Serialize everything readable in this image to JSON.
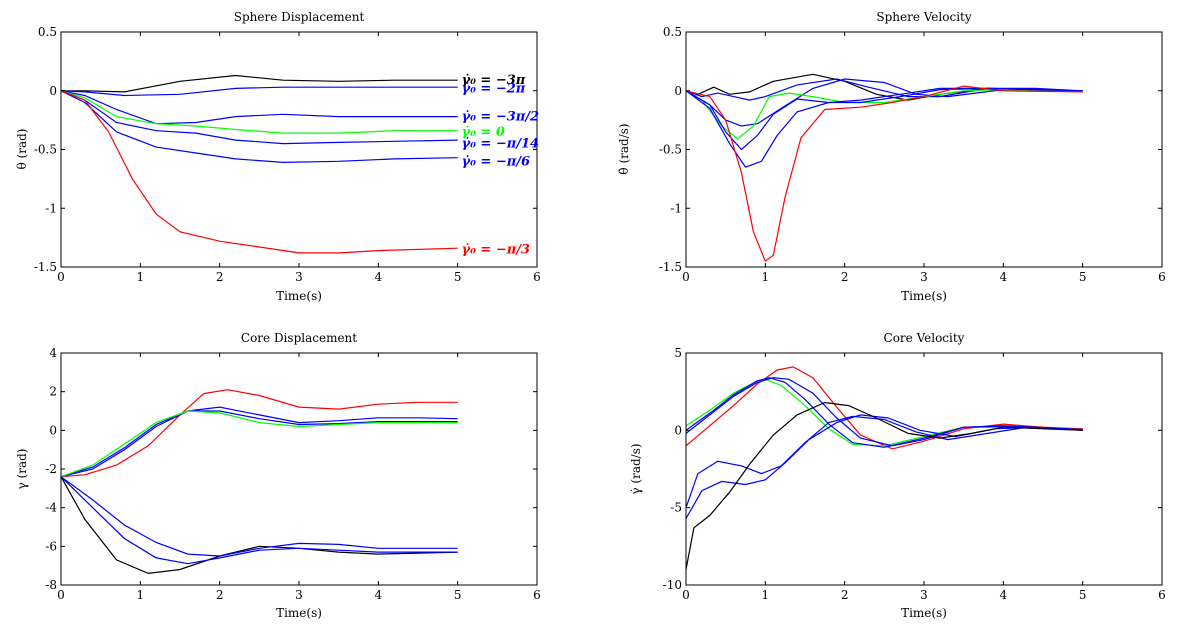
{
  "colors": {
    "black": "#000000",
    "blue": "#0000ff",
    "green": "#00ff00",
    "red": "#ff0000"
  },
  "chart_data": [
    {
      "type": "line",
      "title": "Sphere Displacement",
      "xlabel": "Time(s)",
      "ylabel": "θ (rad)",
      "xlim": [
        0,
        6
      ],
      "ylim": [
        -1.5,
        0.5
      ],
      "xticks": [
        0,
        1,
        2,
        3,
        4,
        5,
        6
      ],
      "yticks": [
        0.5,
        0,
        -0.5,
        -1,
        -1.5
      ],
      "xtick_labels": [
        "0",
        "1",
        "2",
        "3",
        "4",
        "5",
        "6"
      ],
      "ytick_labels": [
        "0.5",
        "0",
        "-0.5",
        "-1",
        "-1.5"
      ],
      "annotations": [
        {
          "text": "γ̇₀ = −3π",
          "x": 5.05,
          "y": 0.09,
          "color": "black"
        },
        {
          "text": "γ̇₀ = −2π",
          "x": 5.05,
          "y": 0.02,
          "color": "blue"
        },
        {
          "text": "γ̇₀ = −3π/2",
          "x": 5.05,
          "y": -0.22,
          "color": "blue"
        },
        {
          "text": "γ̇₀ = 0",
          "x": 5.05,
          "y": -0.35,
          "color": "green"
        },
        {
          "text": "γ̇₀ = −π/14",
          "x": 5.05,
          "y": -0.45,
          "color": "blue"
        },
        {
          "text": "γ̇₀ = −π/6",
          "x": 5.05,
          "y": -0.6,
          "color": "blue"
        },
        {
          "text": "γ̇₀ = −π/3",
          "x": 5.05,
          "y": -1.35,
          "color": "red"
        }
      ],
      "series": [
        {
          "color": "black",
          "x": [
            0,
            0.3,
            0.8,
            1.5,
            2.2,
            2.8,
            3.5,
            4.2,
            5
          ],
          "y": [
            0,
            0,
            -0.01,
            0.08,
            0.13,
            0.09,
            0.08,
            0.09,
            0.09
          ]
        },
        {
          "color": "blue",
          "x": [
            0,
            0.3,
            0.8,
            1.5,
            2.2,
            2.8,
            3.5,
            4.2,
            5
          ],
          "y": [
            0,
            -0.01,
            -0.04,
            -0.03,
            0.02,
            0.03,
            0.03,
            0.03,
            0.03
          ]
        },
        {
          "color": "blue",
          "x": [
            0,
            0.3,
            0.7,
            1.2,
            1.7,
            2.2,
            2.8,
            3.5,
            4.2,
            5
          ],
          "y": [
            0,
            -0.04,
            -0.16,
            -0.28,
            -0.27,
            -0.22,
            -0.2,
            -0.22,
            -0.22,
            -0.22
          ]
        },
        {
          "color": "green",
          "x": [
            0,
            0.3,
            0.7,
            1.2,
            1.7,
            2.2,
            2.8,
            3.5,
            4.2,
            5
          ],
          "y": [
            0,
            -0.06,
            -0.22,
            -0.28,
            -0.3,
            -0.33,
            -0.36,
            -0.36,
            -0.34,
            -0.34
          ]
        },
        {
          "color": "blue",
          "x": [
            0,
            0.3,
            0.7,
            1.2,
            1.7,
            2.2,
            2.8,
            3.5,
            4.2,
            5
          ],
          "y": [
            0,
            -0.08,
            -0.27,
            -0.34,
            -0.36,
            -0.42,
            -0.45,
            -0.44,
            -0.43,
            -0.42
          ]
        },
        {
          "color": "blue",
          "x": [
            0,
            0.3,
            0.7,
            1.2,
            1.7,
            2.2,
            2.8,
            3.5,
            4.2,
            5
          ],
          "y": [
            0,
            -0.1,
            -0.35,
            -0.48,
            -0.53,
            -0.58,
            -0.61,
            -0.6,
            -0.58,
            -0.57
          ]
        },
        {
          "color": "red",
          "x": [
            0,
            0.3,
            0.6,
            0.9,
            1.2,
            1.5,
            2.0,
            2.5,
            3.0,
            3.5,
            4.0,
            5
          ],
          "y": [
            0,
            -0.08,
            -0.35,
            -0.75,
            -1.05,
            -1.2,
            -1.28,
            -1.33,
            -1.38,
            -1.38,
            -1.36,
            -1.34
          ]
        }
      ]
    },
    {
      "type": "line",
      "title": "Sphere Velocity",
      "xlabel": "Time(s)",
      "ylabel": "θ̇ (rad/s)",
      "xlim": [
        0,
        6
      ],
      "ylim": [
        -1.5,
        0.5
      ],
      "xticks": [
        0,
        1,
        2,
        3,
        4,
        5,
        6
      ],
      "yticks": [
        0.5,
        0,
        -0.5,
        -1,
        -1.5
      ],
      "xtick_labels": [
        "0",
        "1",
        "2",
        "3",
        "4",
        "5",
        "6"
      ],
      "ytick_labels": [
        "0.5",
        "0",
        "-0.5",
        "-1",
        "-1.5"
      ],
      "series": [
        {
          "color": "black",
          "x": [
            0,
            0.15,
            0.35,
            0.55,
            0.8,
            1.1,
            1.6,
            2.0,
            2.4,
            2.8,
            3.2,
            3.8,
            4.4,
            5
          ],
          "y": [
            0,
            -0.03,
            0.03,
            -0.03,
            -0.01,
            0.08,
            0.14,
            0.08,
            -0.03,
            -0.08,
            -0.03,
            0.02,
            0.01,
            0.0
          ]
        },
        {
          "color": "blue",
          "x": [
            0,
            0.2,
            0.4,
            0.6,
            0.8,
            1.0,
            1.4,
            1.9,
            2.3,
            2.8,
            3.2,
            3.8,
            4.4,
            5
          ],
          "y": [
            0,
            -0.05,
            -0.02,
            -0.05,
            -0.08,
            -0.05,
            0.05,
            0.1,
            0.03,
            -0.05,
            -0.05,
            0.02,
            0.02,
            0.0
          ]
        },
        {
          "color": "blue",
          "x": [
            0,
            0.3,
            0.5,
            0.7,
            0.9,
            1.2,
            1.6,
            2.0,
            2.5,
            2.9,
            3.3,
            4.0,
            5
          ],
          "y": [
            0,
            -0.12,
            -0.25,
            -0.3,
            -0.28,
            -0.15,
            0.02,
            0.1,
            0.07,
            -0.03,
            -0.05,
            0.01,
            0.0
          ]
        },
        {
          "color": "green",
          "x": [
            0,
            0.2,
            0.45,
            0.65,
            0.85,
            1.05,
            1.3,
            1.6,
            2.0,
            2.5,
            3.0,
            3.5,
            4.0,
            5
          ],
          "y": [
            0,
            -0.08,
            -0.3,
            -0.41,
            -0.3,
            -0.05,
            -0.02,
            -0.05,
            -0.1,
            -0.1,
            -0.05,
            0.0,
            0.01,
            0.0
          ]
        },
        {
          "color": "blue",
          "x": [
            0,
            0.3,
            0.5,
            0.7,
            0.9,
            1.1,
            1.4,
            1.8,
            2.2,
            2.7,
            3.2,
            3.8,
            4.4,
            5
          ],
          "y": [
            0,
            -0.12,
            -0.35,
            -0.5,
            -0.38,
            -0.2,
            -0.07,
            -0.1,
            -0.1,
            -0.05,
            0.01,
            0.02,
            0.01,
            0.0
          ]
        },
        {
          "color": "blue",
          "x": [
            0,
            0.3,
            0.55,
            0.75,
            0.95,
            1.15,
            1.4,
            1.8,
            2.2,
            2.7,
            3.2,
            3.8,
            4.4,
            5
          ],
          "y": [
            0,
            -0.15,
            -0.45,
            -0.65,
            -0.6,
            -0.38,
            -0.18,
            -0.1,
            -0.08,
            -0.03,
            0.02,
            0.02,
            0.01,
            0.0
          ]
        },
        {
          "color": "red",
          "x": [
            0,
            0.3,
            0.5,
            0.7,
            0.85,
            1.0,
            1.1,
            1.25,
            1.45,
            1.75,
            2.2,
            2.6,
            3.0,
            3.5,
            4.0,
            5
          ],
          "y": [
            0,
            -0.05,
            -0.25,
            -0.7,
            -1.2,
            -1.45,
            -1.4,
            -0.9,
            -0.4,
            -0.16,
            -0.14,
            -0.1,
            -0.05,
            0.04,
            0.0,
            -0.01
          ]
        }
      ]
    },
    {
      "type": "line",
      "title": "Core Displacement",
      "xlabel": "Time(s)",
      "ylabel": "γ (rad)",
      "xlim": [
        0,
        6
      ],
      "ylim": [
        -8,
        4
      ],
      "xticks": [
        0,
        1,
        2,
        3,
        4,
        5,
        6
      ],
      "yticks": [
        4,
        2,
        0,
        -2,
        -4,
        -6,
        -8
      ],
      "xtick_labels": [
        "0",
        "1",
        "2",
        "3",
        "4",
        "5",
        "6"
      ],
      "ytick_labels": [
        "4",
        "2",
        "0",
        "-2",
        "-4",
        "-6",
        "-8"
      ],
      "series": [
        {
          "color": "red",
          "x": [
            0,
            0.3,
            0.7,
            1.1,
            1.5,
            1.8,
            2.1,
            2.5,
            3.0,
            3.5,
            4.0,
            4.5,
            5
          ],
          "y": [
            -2.4,
            -2.3,
            -1.8,
            -0.8,
            0.8,
            1.9,
            2.1,
            1.8,
            1.2,
            1.1,
            1.35,
            1.45,
            1.45
          ]
        },
        {
          "color": "blue",
          "x": [
            0,
            0.4,
            0.8,
            1.2,
            1.6,
            2.0,
            2.5,
            3.0,
            3.5,
            4.0,
            4.5,
            5
          ],
          "y": [
            -2.4,
            -2.0,
            -1.0,
            0.2,
            1.0,
            1.2,
            0.8,
            0.4,
            0.5,
            0.65,
            0.65,
            0.6
          ]
        },
        {
          "color": "blue",
          "x": [
            0,
            0.4,
            0.8,
            1.2,
            1.6,
            2.0,
            2.5,
            3.0,
            3.5,
            4.0,
            4.5,
            5
          ],
          "y": [
            -2.4,
            -1.9,
            -0.9,
            0.3,
            1.0,
            1.0,
            0.6,
            0.3,
            0.35,
            0.45,
            0.45,
            0.45
          ]
        },
        {
          "color": "green",
          "x": [
            0,
            0.4,
            0.8,
            1.2,
            1.6,
            2.0,
            2.5,
            3.0,
            3.5,
            4.0,
            4.5,
            5
          ],
          "y": [
            -2.4,
            -1.8,
            -0.7,
            0.4,
            1.0,
            0.9,
            0.4,
            0.2,
            0.3,
            0.4,
            0.4,
            0.4
          ]
        },
        {
          "color": "black",
          "x": [
            0,
            0.3,
            0.7,
            1.1,
            1.5,
            2.0,
            2.5,
            3.0,
            3.5,
            4.0,
            4.5,
            5
          ],
          "y": [
            -2.4,
            -4.6,
            -6.7,
            -7.4,
            -7.2,
            -6.5,
            -6.0,
            -6.1,
            -6.3,
            -6.4,
            -6.35,
            -6.3
          ]
        },
        {
          "color": "blue",
          "x": [
            0,
            0.4,
            0.8,
            1.2,
            1.6,
            2.0,
            2.5,
            3.0,
            3.5,
            4.0,
            4.5,
            5
          ],
          "y": [
            -2.4,
            -4.0,
            -5.6,
            -6.6,
            -6.9,
            -6.6,
            -6.2,
            -6.1,
            -6.2,
            -6.3,
            -6.3,
            -6.3
          ]
        },
        {
          "color": "blue",
          "x": [
            0,
            0.4,
            0.8,
            1.2,
            1.6,
            2.0,
            2.5,
            3.0,
            3.5,
            4.0,
            4.5,
            5
          ],
          "y": [
            -2.4,
            -3.6,
            -4.9,
            -5.8,
            -6.4,
            -6.5,
            -6.1,
            -5.85,
            -5.9,
            -6.1,
            -6.1,
            -6.1
          ]
        }
      ]
    },
    {
      "type": "line",
      "title": "Core Velocity",
      "xlabel": "Time(s)",
      "ylabel": "γ̇ (rad/s)",
      "xlim": [
        0,
        6
      ],
      "ylim": [
        -10,
        5
      ],
      "xticks": [
        0,
        1,
        2,
        3,
        4,
        5,
        6
      ],
      "yticks": [
        5,
        0,
        -5,
        -10
      ],
      "xtick_labels": [
        "0",
        "1",
        "2",
        "3",
        "4",
        "5",
        "6"
      ],
      "ytick_labels": [
        "5",
        "0",
        "-5",
        "-10"
      ],
      "series": [
        {
          "color": "red",
          "x": [
            0,
            0.3,
            0.6,
            0.9,
            1.15,
            1.35,
            1.6,
            1.9,
            2.2,
            2.6,
            3.0,
            3.5,
            4.0,
            4.5,
            5
          ],
          "y": [
            -1.0,
            0.3,
            1.6,
            3.0,
            3.9,
            4.1,
            3.4,
            1.5,
            -0.3,
            -1.2,
            -0.7,
            0.1,
            0.4,
            0.2,
            0.1
          ]
        },
        {
          "color": "green",
          "x": [
            0,
            0.3,
            0.6,
            0.9,
            1.0,
            1.2,
            1.5,
            1.8,
            2.1,
            2.5,
            3.0,
            3.5,
            4.0,
            5
          ],
          "y": [
            0.3,
            1.3,
            2.4,
            3.2,
            3.3,
            2.9,
            1.6,
            0.1,
            -0.9,
            -1.0,
            -0.4,
            0.2,
            0.2,
            0.05
          ]
        },
        {
          "color": "blue",
          "x": [
            0,
            0.3,
            0.6,
            0.9,
            1.05,
            1.25,
            1.5,
            1.8,
            2.1,
            2.5,
            3.0,
            3.5,
            4.0,
            5
          ],
          "y": [
            0.0,
            1.1,
            2.3,
            3.2,
            3.4,
            3.1,
            2.0,
            0.4,
            -0.8,
            -1.1,
            -0.5,
            0.2,
            0.25,
            0.05
          ]
        },
        {
          "color": "blue",
          "x": [
            0,
            0.3,
            0.6,
            0.9,
            1.1,
            1.3,
            1.6,
            1.9,
            2.2,
            2.6,
            3.0,
            3.5,
            4.0,
            5
          ],
          "y": [
            -0.2,
            1.0,
            2.2,
            3.1,
            3.4,
            3.3,
            2.4,
            0.8,
            -0.5,
            -1.0,
            -0.6,
            0.2,
            0.3,
            0.05
          ]
        },
        {
          "color": "blue",
          "x": [
            0,
            0.15,
            0.4,
            0.7,
            0.95,
            1.2,
            1.5,
            1.8,
            2.1,
            2.5,
            2.9,
            3.3,
            3.8,
            4.3,
            5
          ],
          "y": [
            -5.0,
            -2.8,
            -2.0,
            -2.3,
            -2.8,
            -2.3,
            -0.8,
            0.5,
            0.9,
            0.7,
            -0.1,
            -0.6,
            -0.2,
            0.2,
            0.0
          ]
        },
        {
          "color": "blue",
          "x": [
            0,
            0.2,
            0.45,
            0.75,
            1.0,
            1.25,
            1.55,
            1.9,
            2.2,
            2.55,
            2.95,
            3.4,
            3.9,
            4.4,
            5
          ],
          "y": [
            -5.7,
            -3.9,
            -3.3,
            -3.5,
            -3.2,
            -2.1,
            -0.6,
            0.5,
            1.0,
            0.8,
            0.0,
            -0.4,
            0.1,
            0.2,
            0.0
          ]
        },
        {
          "color": "black",
          "x": [
            0,
            0.1,
            0.3,
            0.55,
            0.8,
            1.1,
            1.4,
            1.75,
            2.05,
            2.4,
            2.8,
            3.2,
            3.6,
            4.0,
            4.5,
            5
          ],
          "y": [
            -9.0,
            -6.3,
            -5.5,
            -4.0,
            -2.2,
            -0.3,
            1.0,
            1.8,
            1.6,
            0.8,
            -0.2,
            -0.5,
            -0.2,
            0.2,
            0.1,
            0.0
          ]
        }
      ]
    }
  ]
}
